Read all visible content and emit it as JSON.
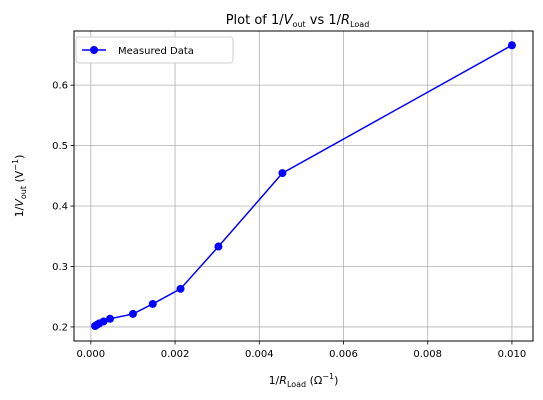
{
  "chart_data": {
    "type": "line",
    "title": {
      "prefix": "Plot of 1/",
      "v": "V",
      "v_sub": "out",
      "mid": " vs 1/",
      "r": "R",
      "r_sub": "Load"
    },
    "xlabel": {
      "prefix": "1/",
      "r": "R",
      "r_sub": "Load",
      "unit": " (Ω",
      "unit_sup": "−1",
      "close": ")"
    },
    "ylabel": {
      "prefix": "1/",
      "v": "V",
      "v_sub": "out",
      "unit": " (V",
      "unit_sup": "−1",
      "close": ")"
    },
    "xlim": [
      -0.0004,
      0.0105
    ],
    "ylim": [
      0.1767,
      0.6896
    ],
    "xticks": [
      0.0,
      0.002,
      0.004,
      0.006,
      0.008,
      0.01
    ],
    "xtick_labels": [
      "0.000",
      "0.002",
      "0.004",
      "0.006",
      "0.008",
      "0.010"
    ],
    "yticks": [
      0.2,
      0.3,
      0.4,
      0.5,
      0.6
    ],
    "ytick_labels": [
      "0.2",
      "0.3",
      "0.4",
      "0.5",
      "0.6"
    ],
    "grid": true,
    "legend_position": "top-left",
    "series": [
      {
        "name": "Measured Data",
        "color": "#0000ff",
        "marker": "circle",
        "x": [
          0.0001,
          0.000147,
          0.0002,
          0.000303,
          0.000455,
          0.001,
          0.00147,
          0.00213,
          0.00303,
          0.00455,
          0.01
        ],
        "y": [
          0.2015,
          0.2035,
          0.2058,
          0.209,
          0.2135,
          0.2215,
          0.238,
          0.263,
          0.333,
          0.4545,
          0.666
        ]
      }
    ]
  }
}
